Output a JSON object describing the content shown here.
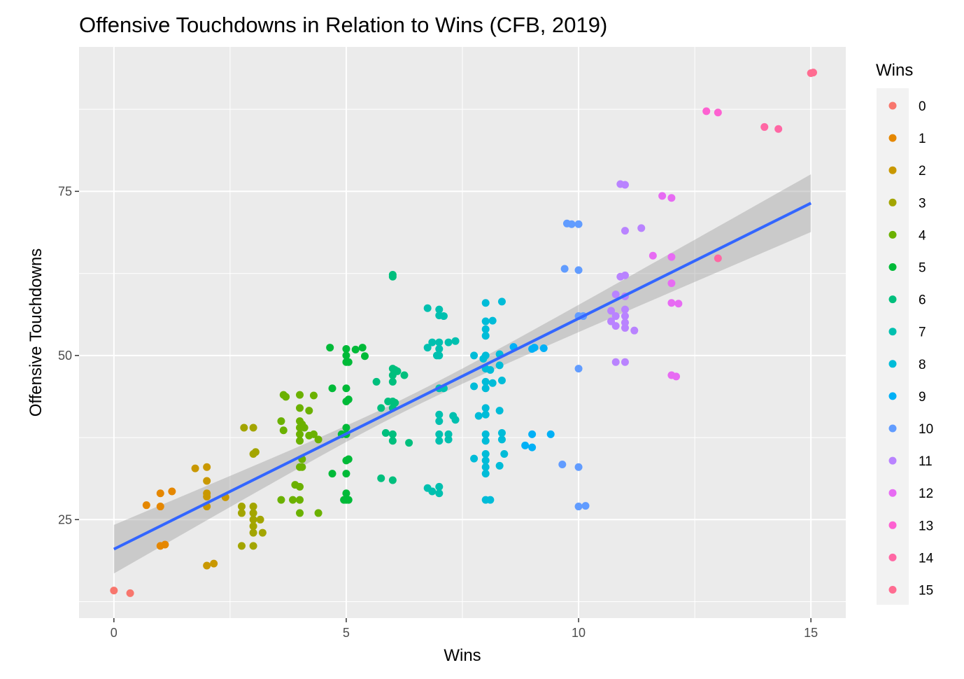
{
  "chart_data": {
    "type": "scatter",
    "title": "Offensive Touchdowns in Relation to Wins (CFB, 2019)",
    "xlabel": "Wins",
    "ylabel": "Offensive Touchdowns",
    "xlim": [
      -0.75,
      15.75
    ],
    "ylim": [
      10,
      97
    ],
    "x_ticks": [
      0,
      5,
      10,
      15
    ],
    "y_ticks": [
      25,
      50,
      75
    ],
    "grid": true,
    "legend": {
      "title": "Wins",
      "position": "right",
      "entries": [
        {
          "label": "0",
          "color": "#F8766D"
        },
        {
          "label": "1",
          "color": "#E58700"
        },
        {
          "label": "2",
          "color": "#C99800"
        },
        {
          "label": "3",
          "color": "#A3A500"
        },
        {
          "label": "4",
          "color": "#6BB100"
        },
        {
          "label": "5",
          "color": "#00BA38"
        },
        {
          "label": "6",
          "color": "#00BF7D"
        },
        {
          "label": "7",
          "color": "#00C0AF"
        },
        {
          "label": "8",
          "color": "#00BCD8"
        },
        {
          "label": "9",
          "color": "#00B0F6"
        },
        {
          "label": "10",
          "color": "#619CFF"
        },
        {
          "label": "11",
          "color": "#B983FF"
        },
        {
          "label": "12",
          "color": "#E76BF3"
        },
        {
          "label": "13",
          "color": "#FD61D1"
        },
        {
          "label": "14",
          "color": "#FF67A4"
        },
        {
          "label": "15",
          "color": "#FF6C91"
        }
      ]
    },
    "regression": {
      "x_range": [
        0,
        15
      ],
      "y_range": [
        20.5,
        73.2
      ],
      "band_lower": [
        16.8,
        68.8
      ],
      "band_upper": [
        24.2,
        77.6
      ],
      "line_color": "#3366FF",
      "band_color": "#999999"
    },
    "points": [
      {
        "wins": 0,
        "x": 0.0,
        "y": 14.2
      },
      {
        "wins": 0,
        "x": 0.35,
        "y": 13.8
      },
      {
        "wins": 1,
        "x": 0.7,
        "y": 27.2
      },
      {
        "wins": 1,
        "x": 1.0,
        "y": 29.0
      },
      {
        "wins": 1,
        "x": 1.0,
        "y": 27.0
      },
      {
        "wins": 1,
        "x": 1.0,
        "y": 21.0
      },
      {
        "wins": 1,
        "x": 1.1,
        "y": 21.2
      },
      {
        "wins": 1,
        "x": 1.25,
        "y": 29.3
      },
      {
        "wins": 2,
        "x": 1.75,
        "y": 32.8
      },
      {
        "wins": 2,
        "x": 2.0,
        "y": 33.0
      },
      {
        "wins": 2,
        "x": 2.0,
        "y": 30.9
      },
      {
        "wins": 2,
        "x": 2.0,
        "y": 29.0
      },
      {
        "wins": 2,
        "x": 2.0,
        "y": 28.5
      },
      {
        "wins": 2,
        "x": 2.0,
        "y": 27.0
      },
      {
        "wins": 2,
        "x": 2.0,
        "y": 18.0
      },
      {
        "wins": 2,
        "x": 2.15,
        "y": 18.3
      },
      {
        "wins": 2,
        "x": 2.4,
        "y": 28.4
      },
      {
        "wins": 3,
        "x": 2.8,
        "y": 39.0
      },
      {
        "wins": 3,
        "x": 3.0,
        "y": 39.0
      },
      {
        "wins": 3,
        "x": 3.0,
        "y": 35.0
      },
      {
        "wins": 3,
        "x": 3.05,
        "y": 35.3
      },
      {
        "wins": 3,
        "x": 2.75,
        "y": 27.0
      },
      {
        "wins": 3,
        "x": 3.0,
        "y": 27.0
      },
      {
        "wins": 3,
        "x": 2.75,
        "y": 26.0
      },
      {
        "wins": 3,
        "x": 3.0,
        "y": 26.0
      },
      {
        "wins": 3,
        "x": 3.0,
        "y": 25.0
      },
      {
        "wins": 3,
        "x": 3.15,
        "y": 25.0
      },
      {
        "wins": 3,
        "x": 3.0,
        "y": 24.0
      },
      {
        "wins": 3,
        "x": 3.0,
        "y": 23.0
      },
      {
        "wins": 3,
        "x": 3.2,
        "y": 23.0
      },
      {
        "wins": 3,
        "x": 2.75,
        "y": 21.0
      },
      {
        "wins": 3,
        "x": 3.0,
        "y": 21.0
      },
      {
        "wins": 4,
        "x": 3.65,
        "y": 44.0
      },
      {
        "wins": 4,
        "x": 3.7,
        "y": 43.7
      },
      {
        "wins": 4,
        "x": 4.0,
        "y": 44.0
      },
      {
        "wins": 4,
        "x": 4.3,
        "y": 43.9
      },
      {
        "wins": 4,
        "x": 4.0,
        "y": 42.0
      },
      {
        "wins": 4,
        "x": 4.2,
        "y": 41.6
      },
      {
        "wins": 4,
        "x": 3.6,
        "y": 40.0
      },
      {
        "wins": 4,
        "x": 4.0,
        "y": 40.0
      },
      {
        "wins": 4,
        "x": 4.05,
        "y": 39.5
      },
      {
        "wins": 4,
        "x": 3.65,
        "y": 38.6
      },
      {
        "wins": 4,
        "x": 4.0,
        "y": 39.0
      },
      {
        "wins": 4,
        "x": 4.1,
        "y": 39.0
      },
      {
        "wins": 4,
        "x": 4.0,
        "y": 38.0
      },
      {
        "wins": 4,
        "x": 4.2,
        "y": 37.8
      },
      {
        "wins": 4,
        "x": 4.3,
        "y": 38.0
      },
      {
        "wins": 4,
        "x": 4.0,
        "y": 37.0
      },
      {
        "wins": 4,
        "x": 4.4,
        "y": 37.2
      },
      {
        "wins": 4,
        "x": 4.05,
        "y": 34.2
      },
      {
        "wins": 4,
        "x": 4.0,
        "y": 33.0
      },
      {
        "wins": 4,
        "x": 4.05,
        "y": 33.0
      },
      {
        "wins": 4,
        "x": 3.9,
        "y": 30.3
      },
      {
        "wins": 4,
        "x": 4.0,
        "y": 30.0
      },
      {
        "wins": 4,
        "x": 3.6,
        "y": 28.0
      },
      {
        "wins": 4,
        "x": 3.85,
        "y": 28.0
      },
      {
        "wins": 4,
        "x": 4.0,
        "y": 28.0
      },
      {
        "wins": 4,
        "x": 4.0,
        "y": 26.0
      },
      {
        "wins": 4,
        "x": 4.4,
        "y": 26.0
      },
      {
        "wins": 5,
        "x": 4.65,
        "y": 51.2
      },
      {
        "wins": 5,
        "x": 5.0,
        "y": 51.0
      },
      {
        "wins": 5,
        "x": 5.0,
        "y": 50.0
      },
      {
        "wins": 5,
        "x": 5.2,
        "y": 50.9
      },
      {
        "wins": 5,
        "x": 5.35,
        "y": 51.2
      },
      {
        "wins": 5,
        "x": 5.0,
        "y": 49.0
      },
      {
        "wins": 5,
        "x": 5.05,
        "y": 49.0
      },
      {
        "wins": 5,
        "x": 5.4,
        "y": 49.9
      },
      {
        "wins": 5,
        "x": 4.7,
        "y": 45.0
      },
      {
        "wins": 5,
        "x": 5.0,
        "y": 45.0
      },
      {
        "wins": 5,
        "x": 5.0,
        "y": 43.0
      },
      {
        "wins": 5,
        "x": 5.05,
        "y": 43.3
      },
      {
        "wins": 5,
        "x": 5.0,
        "y": 39.0
      },
      {
        "wins": 5,
        "x": 5.0,
        "y": 38.0
      },
      {
        "wins": 5,
        "x": 4.9,
        "y": 38.0
      },
      {
        "wins": 5,
        "x": 5.0,
        "y": 34.0
      },
      {
        "wins": 5,
        "x": 5.05,
        "y": 34.2
      },
      {
        "wins": 5,
        "x": 4.7,
        "y": 32.0
      },
      {
        "wins": 5,
        "x": 5.0,
        "y": 32.0
      },
      {
        "wins": 5,
        "x": 5.0,
        "y": 29.0
      },
      {
        "wins": 5,
        "x": 4.95,
        "y": 28.0
      },
      {
        "wins": 5,
        "x": 5.0,
        "y": 28.0
      },
      {
        "wins": 5,
        "x": 5.05,
        "y": 28.0
      },
      {
        "wins": 6,
        "x": 6.0,
        "y": 62.3
      },
      {
        "wins": 6,
        "x": 6.0,
        "y": 62.0
      },
      {
        "wins": 6,
        "x": 6.0,
        "y": 48.0
      },
      {
        "wins": 6,
        "x": 6.05,
        "y": 47.8
      },
      {
        "wins": 6,
        "x": 6.1,
        "y": 47.6
      },
      {
        "wins": 6,
        "x": 6.0,
        "y": 47.0
      },
      {
        "wins": 6,
        "x": 6.25,
        "y": 47.0
      },
      {
        "wins": 6,
        "x": 5.65,
        "y": 46.0
      },
      {
        "wins": 6,
        "x": 6.0,
        "y": 46.0
      },
      {
        "wins": 6,
        "x": 5.9,
        "y": 43.0
      },
      {
        "wins": 6,
        "x": 6.0,
        "y": 43.0
      },
      {
        "wins": 6,
        "x": 6.05,
        "y": 42.8
      },
      {
        "wins": 6,
        "x": 5.75,
        "y": 42.0
      },
      {
        "wins": 6,
        "x": 6.0,
        "y": 42.0
      },
      {
        "wins": 6,
        "x": 5.85,
        "y": 38.2
      },
      {
        "wins": 6,
        "x": 6.0,
        "y": 38.0
      },
      {
        "wins": 6,
        "x": 6.0,
        "y": 37.0
      },
      {
        "wins": 6,
        "x": 6.35,
        "y": 36.7
      },
      {
        "wins": 6,
        "x": 5.75,
        "y": 31.3
      },
      {
        "wins": 6,
        "x": 6.0,
        "y": 31.0
      },
      {
        "wins": 7,
        "x": 6.75,
        "y": 57.2
      },
      {
        "wins": 7,
        "x": 7.0,
        "y": 57.0
      },
      {
        "wins": 7,
        "x": 7.0,
        "y": 56.1
      },
      {
        "wins": 7,
        "x": 7.1,
        "y": 56.0
      },
      {
        "wins": 7,
        "x": 6.85,
        "y": 52.0
      },
      {
        "wins": 7,
        "x": 7.0,
        "y": 52.0
      },
      {
        "wins": 7,
        "x": 7.2,
        "y": 52.0
      },
      {
        "wins": 7,
        "x": 7.35,
        "y": 52.2
      },
      {
        "wins": 7,
        "x": 6.75,
        "y": 51.2
      },
      {
        "wins": 7,
        "x": 7.0,
        "y": 51.0
      },
      {
        "wins": 7,
        "x": 6.95,
        "y": 50.0
      },
      {
        "wins": 7,
        "x": 7.0,
        "y": 50.0
      },
      {
        "wins": 7,
        "x": 7.0,
        "y": 45.0
      },
      {
        "wins": 7,
        "x": 7.1,
        "y": 45.0
      },
      {
        "wins": 7,
        "x": 7.0,
        "y": 41.0
      },
      {
        "wins": 7,
        "x": 7.3,
        "y": 40.8
      },
      {
        "wins": 7,
        "x": 7.0,
        "y": 40.0
      },
      {
        "wins": 7,
        "x": 7.35,
        "y": 40.2
      },
      {
        "wins": 7,
        "x": 7.0,
        "y": 38.0
      },
      {
        "wins": 7,
        "x": 7.2,
        "y": 38.0
      },
      {
        "wins": 7,
        "x": 7.0,
        "y": 37.0
      },
      {
        "wins": 7,
        "x": 7.2,
        "y": 37.2
      },
      {
        "wins": 7,
        "x": 6.75,
        "y": 29.8
      },
      {
        "wins": 7,
        "x": 6.85,
        "y": 29.3
      },
      {
        "wins": 7,
        "x": 7.0,
        "y": 30.0
      },
      {
        "wins": 7,
        "x": 7.0,
        "y": 29.0
      },
      {
        "wins": 8,
        "x": 8.0,
        "y": 58.0
      },
      {
        "wins": 8,
        "x": 8.35,
        "y": 58.2
      },
      {
        "wins": 8,
        "x": 8.0,
        "y": 55.2
      },
      {
        "wins": 8,
        "x": 8.15,
        "y": 55.3
      },
      {
        "wins": 8,
        "x": 8.0,
        "y": 54.0
      },
      {
        "wins": 8,
        "x": 8.0,
        "y": 53.0
      },
      {
        "wins": 8,
        "x": 8.3,
        "y": 50.2
      },
      {
        "wins": 8,
        "x": 7.75,
        "y": 50.0
      },
      {
        "wins": 8,
        "x": 8.0,
        "y": 50.0
      },
      {
        "wins": 8,
        "x": 7.95,
        "y": 49.5
      },
      {
        "wins": 8,
        "x": 8.0,
        "y": 48.0
      },
      {
        "wins": 8,
        "x": 8.1,
        "y": 47.8
      },
      {
        "wins": 8,
        "x": 8.3,
        "y": 48.5
      },
      {
        "wins": 8,
        "x": 8.0,
        "y": 46.0
      },
      {
        "wins": 8,
        "x": 8.15,
        "y": 45.8
      },
      {
        "wins": 8,
        "x": 8.35,
        "y": 46.2
      },
      {
        "wins": 8,
        "x": 7.75,
        "y": 45.3
      },
      {
        "wins": 8,
        "x": 8.0,
        "y": 45.0
      },
      {
        "wins": 8,
        "x": 8.0,
        "y": 42.0
      },
      {
        "wins": 8,
        "x": 8.3,
        "y": 41.6
      },
      {
        "wins": 8,
        "x": 8.0,
        "y": 41.0
      },
      {
        "wins": 8,
        "x": 7.85,
        "y": 40.8
      },
      {
        "wins": 8,
        "x": 8.0,
        "y": 38.0
      },
      {
        "wins": 8,
        "x": 8.35,
        "y": 38.2
      },
      {
        "wins": 8,
        "x": 8.0,
        "y": 37.0
      },
      {
        "wins": 8,
        "x": 8.35,
        "y": 37.2
      },
      {
        "wins": 8,
        "x": 8.0,
        "y": 35.0
      },
      {
        "wins": 8,
        "x": 8.4,
        "y": 35.0
      },
      {
        "wins": 8,
        "x": 7.75,
        "y": 34.3
      },
      {
        "wins": 8,
        "x": 8.0,
        "y": 34.0
      },
      {
        "wins": 8,
        "x": 8.0,
        "y": 33.0
      },
      {
        "wins": 8,
        "x": 8.3,
        "y": 33.2
      },
      {
        "wins": 8,
        "x": 8.0,
        "y": 32.0
      },
      {
        "wins": 8,
        "x": 8.0,
        "y": 28.0
      },
      {
        "wins": 8,
        "x": 8.1,
        "y": 28.0
      },
      {
        "wins": 9,
        "x": 8.6,
        "y": 51.3
      },
      {
        "wins": 9,
        "x": 9.0,
        "y": 51.0
      },
      {
        "wins": 9,
        "x": 9.05,
        "y": 51.2
      },
      {
        "wins": 9,
        "x": 9.25,
        "y": 51.1
      },
      {
        "wins": 9,
        "x": 9.0,
        "y": 38.0
      },
      {
        "wins": 9,
        "x": 9.4,
        "y": 38.0
      },
      {
        "wins": 9,
        "x": 8.85,
        "y": 36.3
      },
      {
        "wins": 9,
        "x": 9.0,
        "y": 36.0
      },
      {
        "wins": 10,
        "x": 9.75,
        "y": 70.1
      },
      {
        "wins": 10,
        "x": 9.85,
        "y": 70.0
      },
      {
        "wins": 10,
        "x": 10.0,
        "y": 70.0
      },
      {
        "wins": 10,
        "x": 9.7,
        "y": 63.2
      },
      {
        "wins": 10,
        "x": 10.0,
        "y": 63.0
      },
      {
        "wins": 10,
        "x": 10.0,
        "y": 56.0
      },
      {
        "wins": 10,
        "x": 10.1,
        "y": 56.0
      },
      {
        "wins": 10,
        "x": 10.0,
        "y": 48.0
      },
      {
        "wins": 10,
        "x": 9.65,
        "y": 33.4
      },
      {
        "wins": 10,
        "x": 10.0,
        "y": 33.0
      },
      {
        "wins": 10,
        "x": 10.0,
        "y": 27.0
      },
      {
        "wins": 10,
        "x": 10.15,
        "y": 27.1
      },
      {
        "wins": 11,
        "x": 10.9,
        "y": 76.1
      },
      {
        "wins": 11,
        "x": 11.0,
        "y": 76.0
      },
      {
        "wins": 11,
        "x": 11.0,
        "y": 69.0
      },
      {
        "wins": 11,
        "x": 11.35,
        "y": 69.4
      },
      {
        "wins": 11,
        "x": 10.9,
        "y": 62.0
      },
      {
        "wins": 11,
        "x": 11.0,
        "y": 62.2
      },
      {
        "wins": 11,
        "x": 10.8,
        "y": 59.3
      },
      {
        "wins": 11,
        "x": 11.0,
        "y": 59.0
      },
      {
        "wins": 11,
        "x": 10.7,
        "y": 56.8
      },
      {
        "wins": 11,
        "x": 11.0,
        "y": 57.0
      },
      {
        "wins": 11,
        "x": 10.8,
        "y": 56.0
      },
      {
        "wins": 11,
        "x": 11.0,
        "y": 56.0
      },
      {
        "wins": 11,
        "x": 11.0,
        "y": 55.0
      },
      {
        "wins": 11,
        "x": 10.7,
        "y": 55.2
      },
      {
        "wins": 11,
        "x": 10.8,
        "y": 54.5
      },
      {
        "wins": 11,
        "x": 11.0,
        "y": 54.2
      },
      {
        "wins": 11,
        "x": 11.2,
        "y": 53.8
      },
      {
        "wins": 11,
        "x": 10.8,
        "y": 49.0
      },
      {
        "wins": 11,
        "x": 11.0,
        "y": 49.0
      },
      {
        "wins": 12,
        "x": 11.8,
        "y": 74.3
      },
      {
        "wins": 12,
        "x": 12.0,
        "y": 74.0
      },
      {
        "wins": 12,
        "x": 11.6,
        "y": 65.2
      },
      {
        "wins": 12,
        "x": 12.0,
        "y": 65.0
      },
      {
        "wins": 12,
        "x": 12.0,
        "y": 61.0
      },
      {
        "wins": 12,
        "x": 12.0,
        "y": 58.0
      },
      {
        "wins": 12,
        "x": 12.15,
        "y": 57.9
      },
      {
        "wins": 12,
        "x": 12.0,
        "y": 47.0
      },
      {
        "wins": 12,
        "x": 12.1,
        "y": 46.8
      },
      {
        "wins": 13,
        "x": 12.75,
        "y": 87.2
      },
      {
        "wins": 13,
        "x": 13.0,
        "y": 87.0
      },
      {
        "wins": 14,
        "x": 13.0,
        "y": 64.8
      },
      {
        "wins": 14,
        "x": 14.0,
        "y": 84.8
      },
      {
        "wins": 14,
        "x": 14.3,
        "y": 84.5
      },
      {
        "wins": 15,
        "x": 15.0,
        "y": 93.0
      },
      {
        "wins": 15,
        "x": 15.05,
        "y": 93.1
      }
    ]
  }
}
